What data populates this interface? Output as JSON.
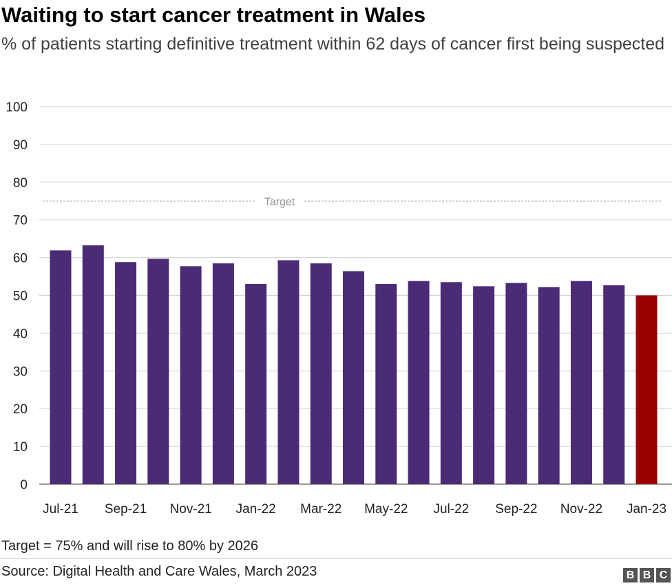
{
  "title": "Waiting to start cancer treatment in Wales",
  "subtitle": "% of patients starting definitive treatment within 62 days of cancer first being suspected",
  "note": "Target = 75% and will rise to 80% by 2026",
  "source": "Source: Digital Health and Care Wales, March 2023",
  "logo": "BBC",
  "chart_data": {
    "type": "bar",
    "categories": [
      "Jul-21",
      "Aug-21",
      "Sep-21",
      "Oct-21",
      "Nov-21",
      "Dec-21",
      "Jan-22",
      "Feb-22",
      "Mar-22",
      "Apr-22",
      "May-22",
      "Jun-22",
      "Jul-22",
      "Aug-22",
      "Sep-22",
      "Oct-22",
      "Nov-22",
      "Dec-22",
      "Jan-23"
    ],
    "values": [
      61.9,
      63.3,
      58.8,
      59.7,
      57.7,
      58.5,
      53.0,
      59.3,
      58.5,
      56.4,
      53.0,
      53.8,
      53.5,
      52.4,
      53.3,
      52.2,
      53.8,
      52.7,
      50.0
    ],
    "tick_labels": [
      "Jul-21",
      "Sep-21",
      "Nov-21",
      "Jan-22",
      "Mar-22",
      "May-22",
      "Jul-22",
      "Sep-22",
      "Nov-22",
      "Jan-23"
    ],
    "ylim": [
      0,
      100
    ],
    "yticks": [
      0,
      10,
      20,
      30,
      40,
      50,
      60,
      70,
      80,
      90,
      100
    ],
    "grid": true,
    "colors": {
      "bar": "#4b2a76",
      "highlight": "#990000",
      "grid": "#d0d0d0",
      "target": "#999999"
    },
    "highlight_category": "Jan-23",
    "target": {
      "value": 75,
      "label": "Target"
    },
    "xlabel": "",
    "ylabel": ""
  }
}
